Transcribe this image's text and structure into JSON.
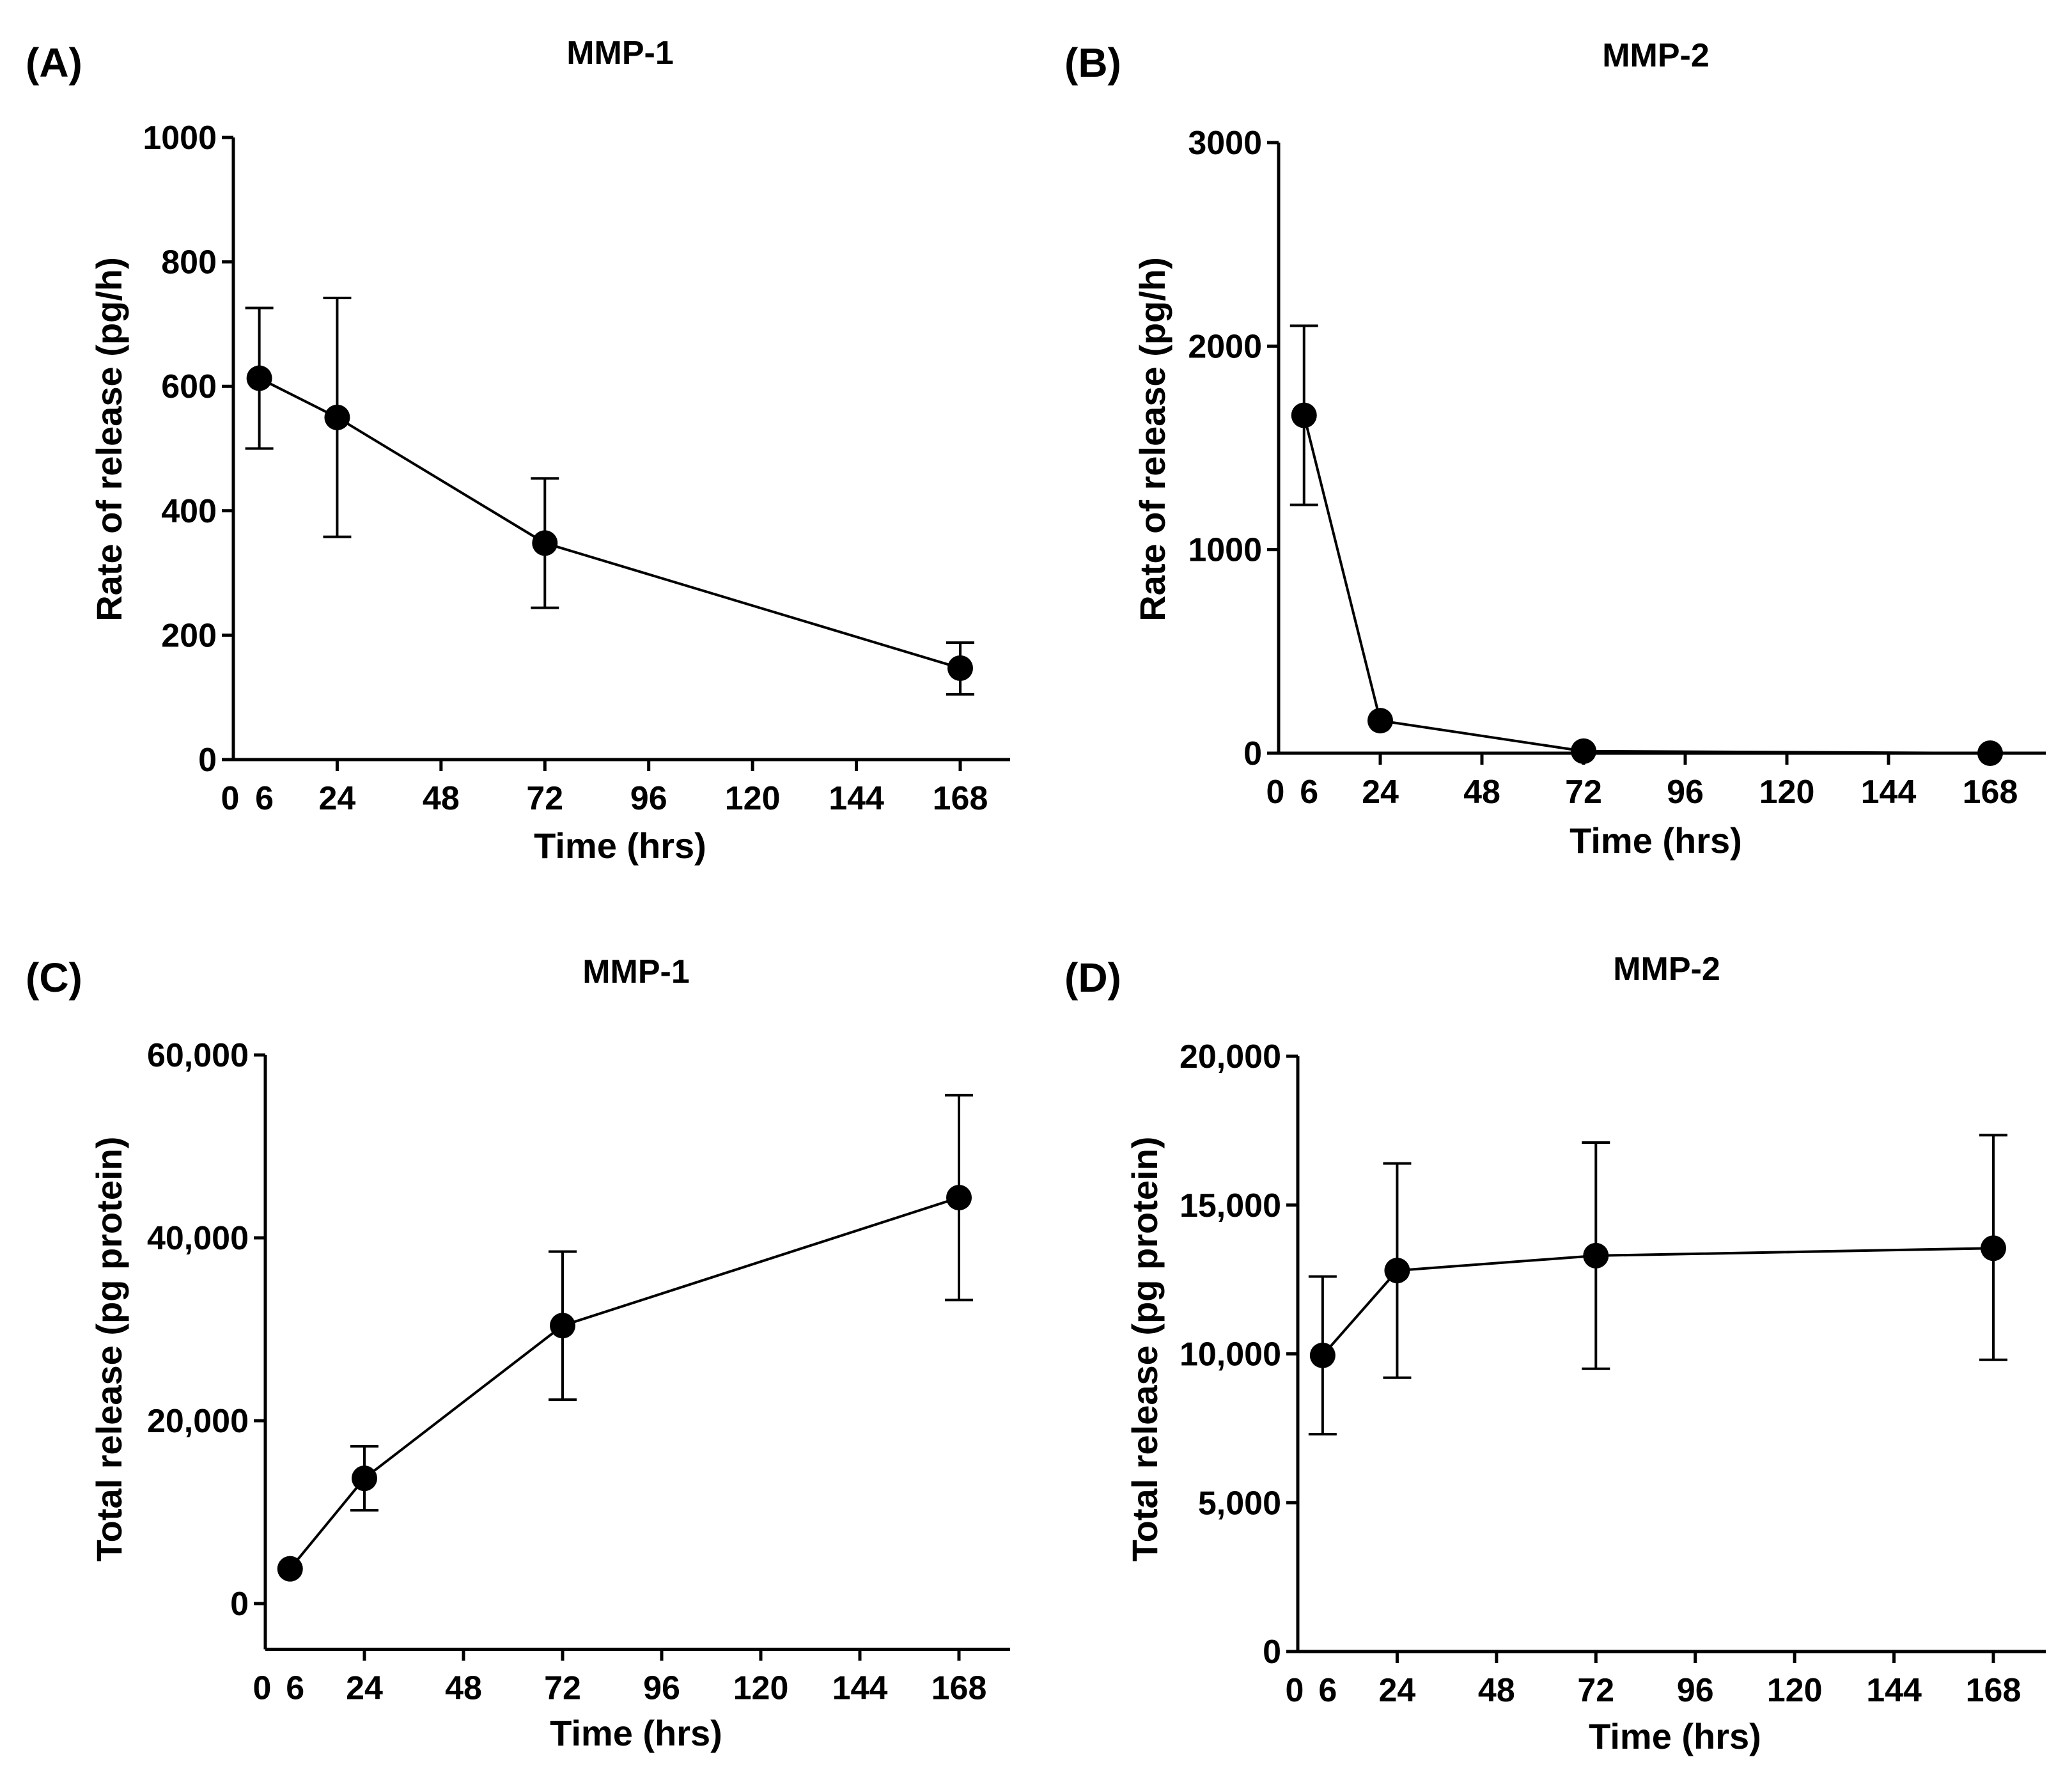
{
  "chart_data": [
    {
      "type": "line",
      "panel": "(A)",
      "title": "MMP-1",
      "xlabel": "Time (hrs)",
      "ylabel": "Rate of release (pg/h)",
      "xlim": [
        0,
        180
      ],
      "ylim": [
        0,
        1000
      ],
      "xticks": [
        0,
        6,
        24,
        48,
        72,
        96,
        120,
        144,
        168
      ],
      "xtick_labels": [
        "0",
        "6",
        "24",
        "48",
        "72",
        "96",
        "120",
        "144",
        "168"
      ],
      "yticks": [
        0,
        200,
        400,
        600,
        800,
        1000
      ],
      "ytick_labels": [
        "0",
        "200",
        "400",
        "600",
        "800",
        "1000"
      ],
      "series": [
        {
          "name": "MMP-1",
          "x": [
            6,
            24,
            72,
            168
          ],
          "y": [
            613,
            550,
            348,
            147
          ],
          "err_low": [
            500,
            358,
            244,
            105
          ],
          "err_high": [
            726,
            742,
            452,
            188
          ]
        }
      ]
    },
    {
      "type": "line",
      "panel": "(B)",
      "title": "MMP-2",
      "xlabel": "Time (hrs)",
      "ylabel": "Rate of release (pg/h)",
      "xlim": [
        0,
        180
      ],
      "ylim": [
        0,
        3000
      ],
      "xticks": [
        0,
        6,
        24,
        48,
        72,
        96,
        120,
        144,
        168
      ],
      "xtick_labels": [
        "0",
        "6",
        "24",
        "48",
        "72",
        "96",
        "120",
        "144",
        "168"
      ],
      "yticks": [
        0,
        1000,
        2000,
        3000
      ],
      "ytick_labels": [
        "0",
        "1000",
        "2000",
        "3000"
      ],
      "series": [
        {
          "name": "MMP-2",
          "x": [
            6,
            24,
            72,
            168
          ],
          "y": [
            1660,
            160,
            10,
            0
          ],
          "err_low": [
            1220,
            160,
            10,
            0
          ],
          "err_high": [
            2100,
            160,
            10,
            0
          ]
        }
      ]
    },
    {
      "type": "line",
      "panel": "(C)",
      "title": "MMP-1",
      "xlabel": "Time (hrs)",
      "ylabel": "Total release (pg protein)",
      "xlim": [
        0,
        180
      ],
      "ylim": [
        -5000,
        60000
      ],
      "xticks": [
        0,
        6,
        24,
        48,
        72,
        96,
        120,
        144,
        168
      ],
      "xtick_labels": [
        "0",
        "6",
        "24",
        "48",
        "72",
        "96",
        "120",
        "144",
        "168"
      ],
      "yticks": [
        0,
        20000,
        40000,
        60000
      ],
      "ytick_labels": [
        "0",
        "20,000",
        "40,000",
        "60,000"
      ],
      "series": [
        {
          "name": "MMP-1",
          "x": [
            6,
            24,
            72,
            168
          ],
          "y": [
            3800,
            13700,
            30400,
            44400
          ],
          "err_low": [
            3800,
            10200,
            22300,
            33200
          ],
          "err_high": [
            3800,
            17200,
            38500,
            55600
          ]
        }
      ]
    },
    {
      "type": "line",
      "panel": "(D)",
      "title": "MMP-2",
      "xlabel": "Time (hrs)",
      "ylabel": "Total release (pg protein)",
      "xlim": [
        0,
        180
      ],
      "ylim": [
        0,
        20000
      ],
      "xticks": [
        0,
        6,
        24,
        48,
        72,
        96,
        120,
        144,
        168
      ],
      "xtick_labels": [
        "0",
        "6",
        "24",
        "48",
        "72",
        "96",
        "120",
        "144",
        "168"
      ],
      "yticks": [
        0,
        5000,
        10000,
        15000,
        20000
      ],
      "ytick_labels": [
        "0",
        "5,000",
        "10,000",
        "15,000",
        "20,000"
      ],
      "series": [
        {
          "name": "MMP-2",
          "x": [
            6,
            24,
            72,
            168
          ],
          "y": [
            9950,
            12800,
            13300,
            13550
          ],
          "err_low": [
            7300,
            9200,
            9500,
            9800
          ],
          "err_high": [
            12600,
            16400,
            17100,
            17350
          ]
        }
      ]
    }
  ]
}
